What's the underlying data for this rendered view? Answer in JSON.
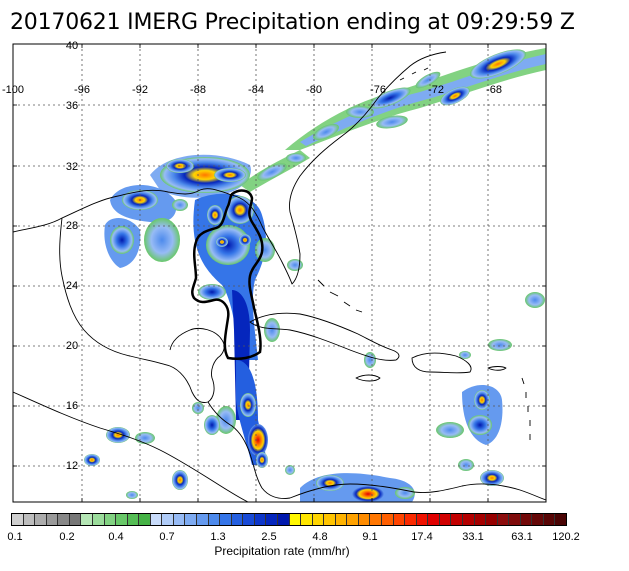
{
  "title": "20170621 IMERG Precipitation ending at 09:29:59 Z",
  "map": {
    "lon_ticks": [
      "-100",
      "-96",
      "-92",
      "-88",
      "-84",
      "-80",
      "-76",
      "-72",
      "-68"
    ],
    "lat_ticks": [
      "40",
      "36",
      "32",
      "28",
      "24",
      "20",
      "16",
      "12"
    ],
    "lon_range": [
      -102,
      -64
    ],
    "lat_range": [
      9.5,
      40
    ],
    "outline_color": "#000000"
  },
  "colorbar": {
    "title": "Precipitation rate (mm/hr)",
    "labels": [
      "0.1",
      "0.2",
      "0.4",
      "0.7",
      "1.3",
      "2.5",
      "4.8",
      "9.1",
      "17.4",
      "33.1",
      "63.1",
      "120.2"
    ],
    "colors": [
      "#cfcfcf",
      "#bdbdbd",
      "#acacac",
      "#9a9a9a",
      "#888888",
      "#777777",
      "#b5e6b5",
      "#9bdc9b",
      "#82d282",
      "#69c869",
      "#55bd55",
      "#45b245",
      "#c9dcfb",
      "#b0ccf8",
      "#97bbf5",
      "#7eabf2",
      "#659aef",
      "#4d8aec",
      "#3575e8",
      "#245fe0",
      "#184ad6",
      "#0d36c9",
      "#0526bd",
      "#0018ad",
      "#fff700",
      "#ffe600",
      "#ffd500",
      "#ffc400",
      "#ffb300",
      "#ffa200",
      "#ff8c00",
      "#ff7600",
      "#ff5f00",
      "#ff4400",
      "#fb2a00",
      "#ef1200",
      "#e00000",
      "#d10000",
      "#c20000",
      "#b30000",
      "#a50000",
      "#960000",
      "#8c0d0d",
      "#7f0b0b",
      "#720909",
      "#650808",
      "#580606",
      "#4a0404"
    ]
  }
}
